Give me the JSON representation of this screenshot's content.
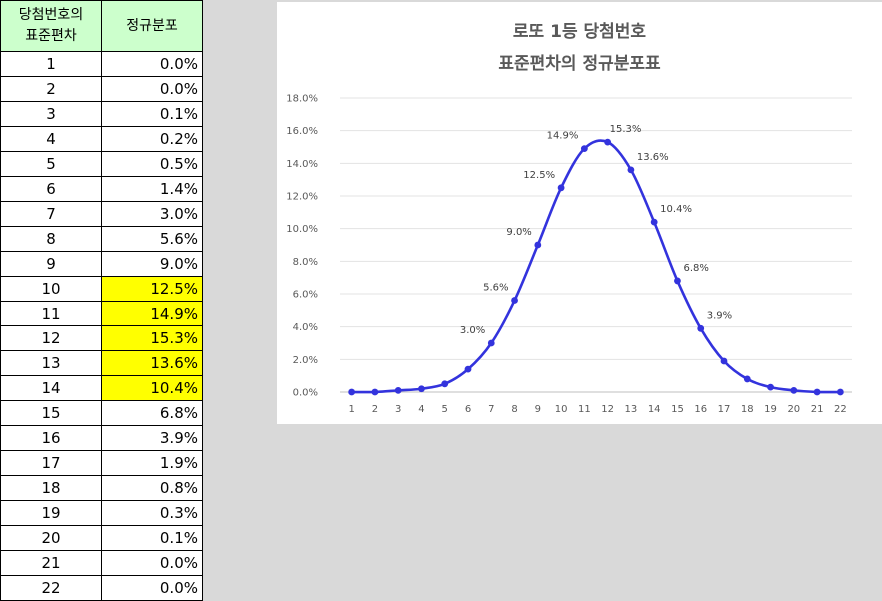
{
  "table": {
    "header_col1_line1": "당첨번호의",
    "header_col1_line2": "표준편차",
    "header_col2": "정규분포",
    "highlight_color": "#ffff00",
    "header_color": "#ccffcc",
    "rows": [
      {
        "n": "1",
        "v": "0.0%",
        "hl": false
      },
      {
        "n": "2",
        "v": "0.0%",
        "hl": false
      },
      {
        "n": "3",
        "v": "0.1%",
        "hl": false
      },
      {
        "n": "4",
        "v": "0.2%",
        "hl": false
      },
      {
        "n": "5",
        "v": "0.5%",
        "hl": false
      },
      {
        "n": "6",
        "v": "1.4%",
        "hl": false
      },
      {
        "n": "7",
        "v": "3.0%",
        "hl": false
      },
      {
        "n": "8",
        "v": "5.6%",
        "hl": false
      },
      {
        "n": "9",
        "v": "9.0%",
        "hl": false
      },
      {
        "n": "10",
        "v": "12.5%",
        "hl": true
      },
      {
        "n": "11",
        "v": "14.9%",
        "hl": true
      },
      {
        "n": "12",
        "v": "15.3%",
        "hl": true
      },
      {
        "n": "13",
        "v": "13.6%",
        "hl": true
      },
      {
        "n": "14",
        "v": "10.4%",
        "hl": true
      },
      {
        "n": "15",
        "v": "6.8%",
        "hl": false
      },
      {
        "n": "16",
        "v": "3.9%",
        "hl": false
      },
      {
        "n": "17",
        "v": "1.9%",
        "hl": false
      },
      {
        "n": "18",
        "v": "0.8%",
        "hl": false
      },
      {
        "n": "19",
        "v": "0.3%",
        "hl": false
      },
      {
        "n": "20",
        "v": "0.1%",
        "hl": false
      },
      {
        "n": "21",
        "v": "0.0%",
        "hl": false
      },
      {
        "n": "22",
        "v": "0.0%",
        "hl": false
      }
    ]
  },
  "chart_data": {
    "type": "line",
    "title_line1": "로또 1등 당첨번호",
    "title_line2": "표준편차의 정규분포표",
    "x": [
      1,
      2,
      3,
      4,
      5,
      6,
      7,
      8,
      9,
      10,
      11,
      12,
      13,
      14,
      15,
      16,
      17,
      18,
      19,
      20,
      21,
      22
    ],
    "series": [
      {
        "values": [
          0.0,
          0.0,
          0.1,
          0.2,
          0.5,
          1.4,
          3.0,
          5.6,
          9.0,
          12.5,
          14.9,
          15.3,
          13.6,
          10.4,
          6.8,
          3.9,
          1.9,
          0.8,
          0.3,
          0.1,
          0.0,
          0.0
        ],
        "color": "#3333dd"
      }
    ],
    "data_labels": [
      {
        "x": 7,
        "text": "3.0%"
      },
      {
        "x": 8,
        "text": "5.6%"
      },
      {
        "x": 9,
        "text": "9.0%"
      },
      {
        "x": 10,
        "text": "12.5%"
      },
      {
        "x": 11,
        "text": "14.9%"
      },
      {
        "x": 12,
        "text": "15.3%"
      },
      {
        "x": 13,
        "text": "13.6%"
      },
      {
        "x": 14,
        "text": "10.4%"
      },
      {
        "x": 15,
        "text": "6.8%"
      },
      {
        "x": 16,
        "text": "3.9%"
      }
    ],
    "yticks": [
      "0.0%",
      "2.0%",
      "4.0%",
      "6.0%",
      "8.0%",
      "10.0%",
      "12.0%",
      "14.0%",
      "16.0%",
      "18.0%"
    ],
    "ylim": [
      0,
      18
    ],
    "grid": true,
    "legend": "none"
  }
}
